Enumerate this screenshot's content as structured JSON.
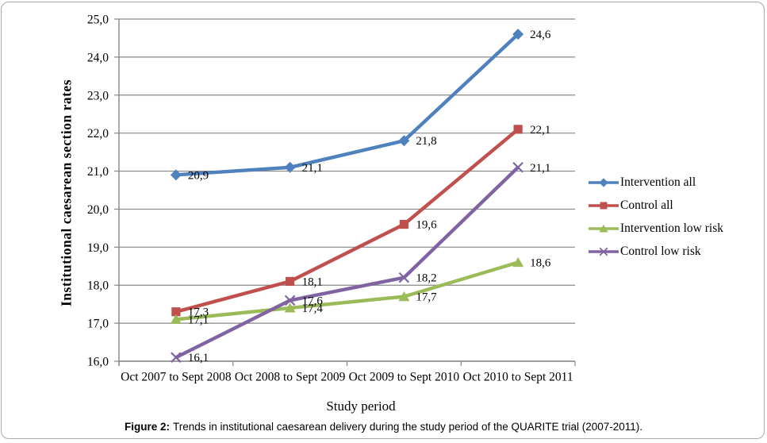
{
  "figure": {
    "caption_label": "Figure 2:",
    "caption_text": "Trends in institutional caesarean delivery during the study period of the QUARITE trial (2007-2011)."
  },
  "chart_data": {
    "type": "line",
    "title": "",
    "xlabel": "Study period",
    "ylabel": "Institutional caesarean section rates",
    "categories": [
      "Oct 2007 to Sept 2008",
      "Oct 2008 to Sept 2009",
      "Oct 2009 to Sept 2010",
      "Oct 2010 to Sept 2011"
    ],
    "ylim": [
      16.0,
      25.0
    ],
    "ytick_step": 1.0,
    "decimal_separator": ",",
    "grid": true,
    "legend_position": "right",
    "series": [
      {
        "name": "Intervention all",
        "color": "#4F81BD",
        "marker": "diamond",
        "values": [
          20.9,
          21.1,
          21.8,
          24.6
        ]
      },
      {
        "name": "Control all",
        "color": "#C0504D",
        "marker": "square",
        "values": [
          17.3,
          18.1,
          19.6,
          22.1
        ]
      },
      {
        "name": "Intervention low risk",
        "color": "#9BBB59",
        "marker": "triangle",
        "values": [
          17.1,
          17.4,
          17.7,
          18.6
        ]
      },
      {
        "name": "Control low risk",
        "color": "#8064A2",
        "marker": "x",
        "values": [
          16.1,
          17.6,
          18.2,
          21.1
        ]
      }
    ]
  },
  "colors": {
    "grid": "#878787",
    "axis": "#878787",
    "text": "#000000",
    "card_border": "#a9a9a9"
  }
}
